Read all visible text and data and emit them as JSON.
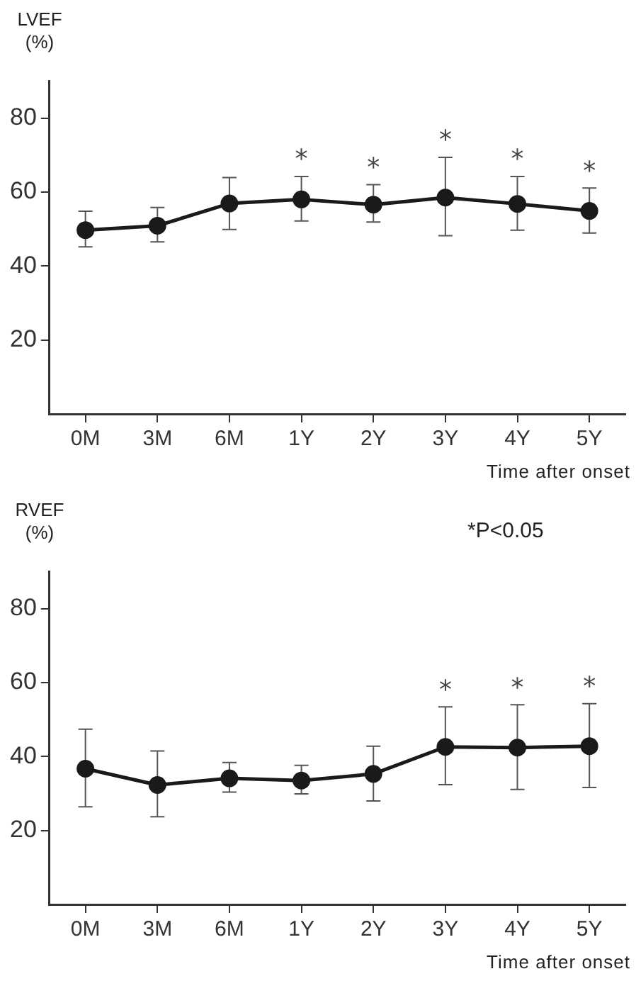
{
  "chart_data": [
    {
      "type": "line",
      "ylabel": "LVEF (%)",
      "xlabel": "Time after onset",
      "categories": [
        "0M",
        "3M",
        "6M",
        "1Y",
        "2Y",
        "3Y",
        "4Y",
        "5Y"
      ],
      "series": [
        {
          "color": "#1a1a1a",
          "values": [
            49.7,
            50.9,
            56.9,
            58,
            56.6,
            58.5,
            56.8,
            54.9
          ],
          "errors": [
            [
              45.2,
              54.8
            ],
            [
              46.5,
              55.8
            ],
            [
              49.9,
              63.9
            ],
            [
              52.2,
              64.2
            ],
            [
              51.9,
              62
            ],
            [
              48.2,
              69.4
            ],
            [
              49.7,
              64.2
            ],
            [
              48.9,
              61.1
            ]
          ]
        }
      ],
      "ylim": [
        0,
        90
      ],
      "yticks": [
        20,
        40,
        60,
        80
      ],
      "grid": false,
      "legend": false,
      "marker": "circle",
      "line_style": "solid",
      "annotations": [
        {
          "text": "*",
          "x": "1Y",
          "y": 58
        },
        {
          "text": "*",
          "x": "2Y",
          "y": 56.6
        },
        {
          "text": "*",
          "x": "3Y",
          "y": 58.5
        },
        {
          "text": "*",
          "x": "4Y",
          "y": 56.8
        },
        {
          "text": "*",
          "x": "5Y",
          "y": 54.9
        }
      ]
    },
    {
      "type": "line",
      "ylabel": "RVEF (%)",
      "xlabel": "Time after onset",
      "categories": [
        "0M",
        "3M",
        "6M",
        "1Y",
        "2Y",
        "3Y",
        "4Y",
        "5Y"
      ],
      "series": [
        {
          "color": "#1a1a1a",
          "values": [
            36.7,
            32.3,
            34.1,
            33.5,
            35.3,
            42.6,
            42.4,
            42.8
          ],
          "errors": [
            [
              26.4,
              47.4
            ],
            [
              23.7,
              41.5
            ],
            [
              30.4,
              38.4
            ],
            [
              29.9,
              37.6
            ],
            [
              28,
              42.8
            ],
            [
              32.4,
              53.4
            ],
            [
              31.1,
              54
            ],
            [
              31.6,
              54.3
            ]
          ]
        }
      ],
      "ylim": [
        0,
        90
      ],
      "yticks": [
        20,
        40,
        60,
        80
      ],
      "grid": false,
      "legend": false,
      "marker": "circle",
      "line_style": "solid",
      "annotations": [
        "*P<0.05",
        {
          "text": "*",
          "x": "3Y",
          "y": 42.6
        },
        {
          "text": "*",
          "x": "4Y",
          "y": 42.4
        },
        {
          "text": "*",
          "x": "5Y",
          "y": 42.8
        }
      ]
    }
  ]
}
